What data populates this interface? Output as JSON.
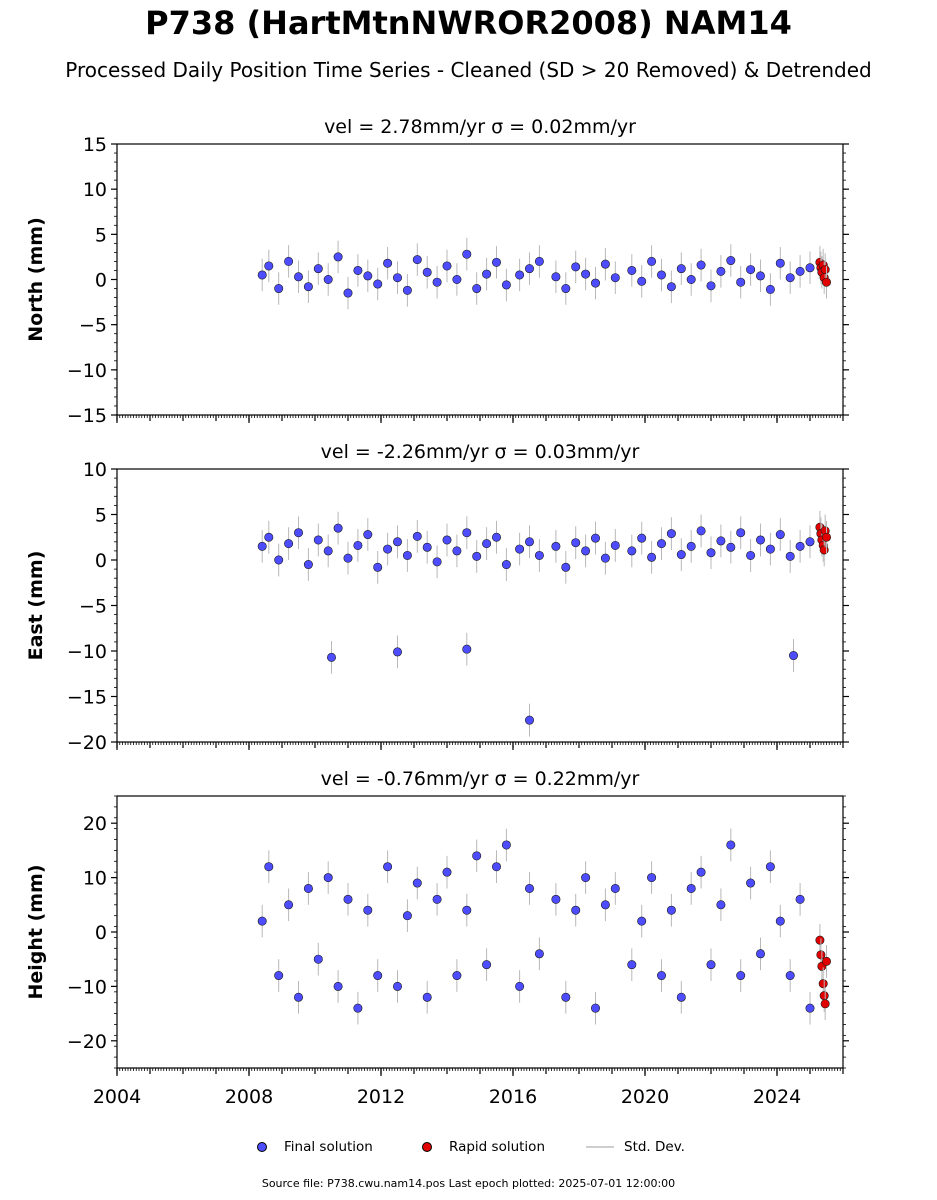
{
  "title": "P738 (HartMtnNWROR2008) NAM14",
  "subtitle": "Processed Daily Position Time Series - Cleaned (SD > 20 Removed) & Detrended",
  "footer": "Source file: P738.cwu.nam14.pos  Last epoch plotted: 2025-07-01 12:00:00",
  "legend": {
    "final": "Final solution",
    "rapid": "Rapid solution",
    "std": "Std. Dev."
  },
  "colors": {
    "final": "#4d4dff",
    "rapid": "#e00000",
    "std": "#b8b8b8"
  },
  "chart_data": [
    {
      "type": "scatter",
      "title": "vel = 2.78mm/yr   σ = 0.02mm/yr",
      "ylabel": "North (mm)",
      "ylim": [
        -15,
        15
      ],
      "yticks": [
        -15,
        -10,
        -5,
        0,
        5,
        10,
        15
      ],
      "xlim": [
        2004,
        2026
      ],
      "xticks": [
        2004,
        2008,
        2012,
        2016,
        2020,
        2024
      ],
      "series": [
        {
          "name": "Final solution",
          "x": [
            2008.4,
            2008.6,
            2008.9,
            2009.2,
            2009.5,
            2009.8,
            2010.1,
            2010.4,
            2010.7,
            2011.0,
            2011.3,
            2011.6,
            2011.9,
            2012.2,
            2012.5,
            2012.8,
            2013.1,
            2013.4,
            2013.7,
            2014.0,
            2014.3,
            2014.6,
            2014.9,
            2015.2,
            2015.5,
            2015.8,
            2016.2,
            2016.5,
            2016.8,
            2017.3,
            2017.6,
            2017.9,
            2018.2,
            2018.5,
            2018.8,
            2019.1,
            2019.6,
            2019.9,
            2020.2,
            2020.5,
            2020.8,
            2021.1,
            2021.4,
            2021.7,
            2022.0,
            2022.3,
            2022.6,
            2022.9,
            2023.2,
            2023.5,
            2023.8,
            2024.1,
            2024.4,
            2024.7,
            2025.0
          ],
          "y": [
            0.5,
            1.5,
            -1.0,
            2.0,
            0.3,
            -0.8,
            1.2,
            0.0,
            2.5,
            -1.5,
            1.0,
            0.4,
            -0.5,
            1.8,
            0.2,
            -1.2,
            2.2,
            0.8,
            -0.3,
            1.5,
            0.0,
            2.8,
            -1.0,
            0.6,
            1.9,
            -0.6,
            0.5,
            1.2,
            2.0,
            0.3,
            -1.0,
            1.4,
            0.6,
            -0.4,
            1.7,
            0.2,
            1.0,
            -0.2,
            2.0,
            0.5,
            -0.8,
            1.2,
            0.0,
            1.6,
            -0.7,
            0.9,
            2.1,
            -0.3,
            1.1,
            0.4,
            -1.1,
            1.8,
            0.2,
            0.9,
            1.3
          ]
        },
        {
          "name": "Rapid solution",
          "x": [
            2025.3,
            2025.33,
            2025.36,
            2025.4,
            2025.43,
            2025.46,
            2025.5
          ],
          "y": [
            1.9,
            1.3,
            0.8,
            1.6,
            0.2,
            1.1,
            -0.3
          ]
        }
      ]
    },
    {
      "type": "scatter",
      "title": "vel = -2.26mm/yr   σ = 0.03mm/yr",
      "ylabel": "East (mm)",
      "ylim": [
        -20,
        10
      ],
      "yticks": [
        -20,
        -15,
        -10,
        -5,
        0,
        5,
        10
      ],
      "xlim": [
        2004,
        2026
      ],
      "xticks": [
        2004,
        2008,
        2012,
        2016,
        2020,
        2024
      ],
      "series": [
        {
          "name": "Final solution",
          "x": [
            2008.4,
            2008.6,
            2008.9,
            2009.2,
            2009.5,
            2009.8,
            2010.1,
            2010.4,
            2010.7,
            2011.0,
            2011.3,
            2011.6,
            2011.9,
            2012.2,
            2012.5,
            2012.8,
            2013.1,
            2013.4,
            2013.7,
            2014.0,
            2014.3,
            2014.6,
            2014.9,
            2015.2,
            2015.5,
            2015.8,
            2016.2,
            2016.5,
            2016.8,
            2017.3,
            2017.6,
            2017.9,
            2018.2,
            2018.5,
            2018.8,
            2019.1,
            2019.6,
            2019.9,
            2020.2,
            2020.5,
            2020.8,
            2021.1,
            2021.4,
            2021.7,
            2022.0,
            2022.3,
            2022.6,
            2022.9,
            2023.2,
            2023.5,
            2023.8,
            2024.1,
            2024.4,
            2024.7,
            2025.0,
            2010.5,
            2012.5,
            2014.6,
            2016.5,
            2024.5
          ],
          "y": [
            1.5,
            2.5,
            0.0,
            1.8,
            3.0,
            -0.5,
            2.2,
            1.0,
            3.5,
            0.2,
            1.6,
            2.8,
            -0.8,
            1.2,
            2.0,
            0.5,
            2.6,
            1.4,
            -0.2,
            2.2,
            1.0,
            3.0,
            0.4,
            1.8,
            2.5,
            -0.5,
            1.2,
            2.0,
            0.5,
            1.5,
            -0.8,
            1.9,
            1.0,
            2.4,
            0.2,
            1.6,
            1.0,
            2.4,
            0.3,
            1.8,
            2.9,
            0.6,
            1.5,
            3.2,
            0.8,
            2.1,
            1.4,
            3.0,
            0.5,
            2.2,
            1.2,
            2.8,
            0.4,
            1.5,
            2.0,
            -10.7,
            -10.1,
            -9.8,
            -17.6,
            -10.5
          ]
        },
        {
          "name": "Rapid solution",
          "x": [
            2025.3,
            2025.33,
            2025.36,
            2025.4,
            2025.43,
            2025.46,
            2025.5
          ],
          "y": [
            3.6,
            2.9,
            2.2,
            1.6,
            1.1,
            3.2,
            2.5
          ]
        }
      ]
    },
    {
      "type": "scatter",
      "title": "vel = -0.76mm/yr   σ = 0.22mm/yr",
      "ylabel": "Height (mm)",
      "ylim": [
        -25,
        25
      ],
      "yticks": [
        -20,
        -10,
        0,
        10,
        20
      ],
      "xlim": [
        2004,
        2026
      ],
      "xticks": [
        2004,
        2008,
        2012,
        2016,
        2020,
        2024
      ],
      "series": [
        {
          "name": "Final solution",
          "x": [
            2008.4,
            2008.6,
            2008.9,
            2009.2,
            2009.5,
            2009.8,
            2010.1,
            2010.4,
            2010.7,
            2011.0,
            2011.3,
            2011.6,
            2011.9,
            2012.2,
            2012.5,
            2012.8,
            2013.1,
            2013.4,
            2013.7,
            2014.0,
            2014.3,
            2014.6,
            2014.9,
            2015.2,
            2015.5,
            2015.8,
            2016.2,
            2016.5,
            2016.8,
            2017.3,
            2017.6,
            2017.9,
            2018.2,
            2018.5,
            2018.8,
            2019.1,
            2019.6,
            2019.9,
            2020.2,
            2020.5,
            2020.8,
            2021.1,
            2021.4,
            2021.7,
            2022.0,
            2022.3,
            2022.6,
            2022.9,
            2023.2,
            2023.5,
            2023.8,
            2024.1,
            2024.4,
            2024.7,
            2025.0
          ],
          "y": [
            2.0,
            12.0,
            -8.0,
            5.0,
            -12.0,
            8.0,
            -5.0,
            10.0,
            -10.0,
            6.0,
            -14.0,
            4.0,
            -8.0,
            12.0,
            -10.0,
            3.0,
            9.0,
            -12.0,
            6.0,
            11.0,
            -8.0,
            4.0,
            14.0,
            -6.0,
            12.0,
            16.0,
            -10.0,
            8.0,
            -4.0,
            6.0,
            -12.0,
            4.0,
            10.0,
            -14.0,
            5.0,
            8.0,
            -6.0,
            2.0,
            10.0,
            -8.0,
            4.0,
            -12.0,
            8.0,
            11.0,
            -6.0,
            5.0,
            16.0,
            -8.0,
            9.0,
            -4.0,
            12.0,
            2.0,
            -8.0,
            6.0,
            -14.0
          ]
        },
        {
          "name": "Rapid solution",
          "x": [
            2025.3,
            2025.33,
            2025.36,
            2025.4,
            2025.43,
            2025.46,
            2025.5
          ],
          "y": [
            -1.5,
            -4.2,
            -6.3,
            -9.5,
            -11.7,
            -13.2,
            -5.4
          ]
        }
      ]
    }
  ]
}
